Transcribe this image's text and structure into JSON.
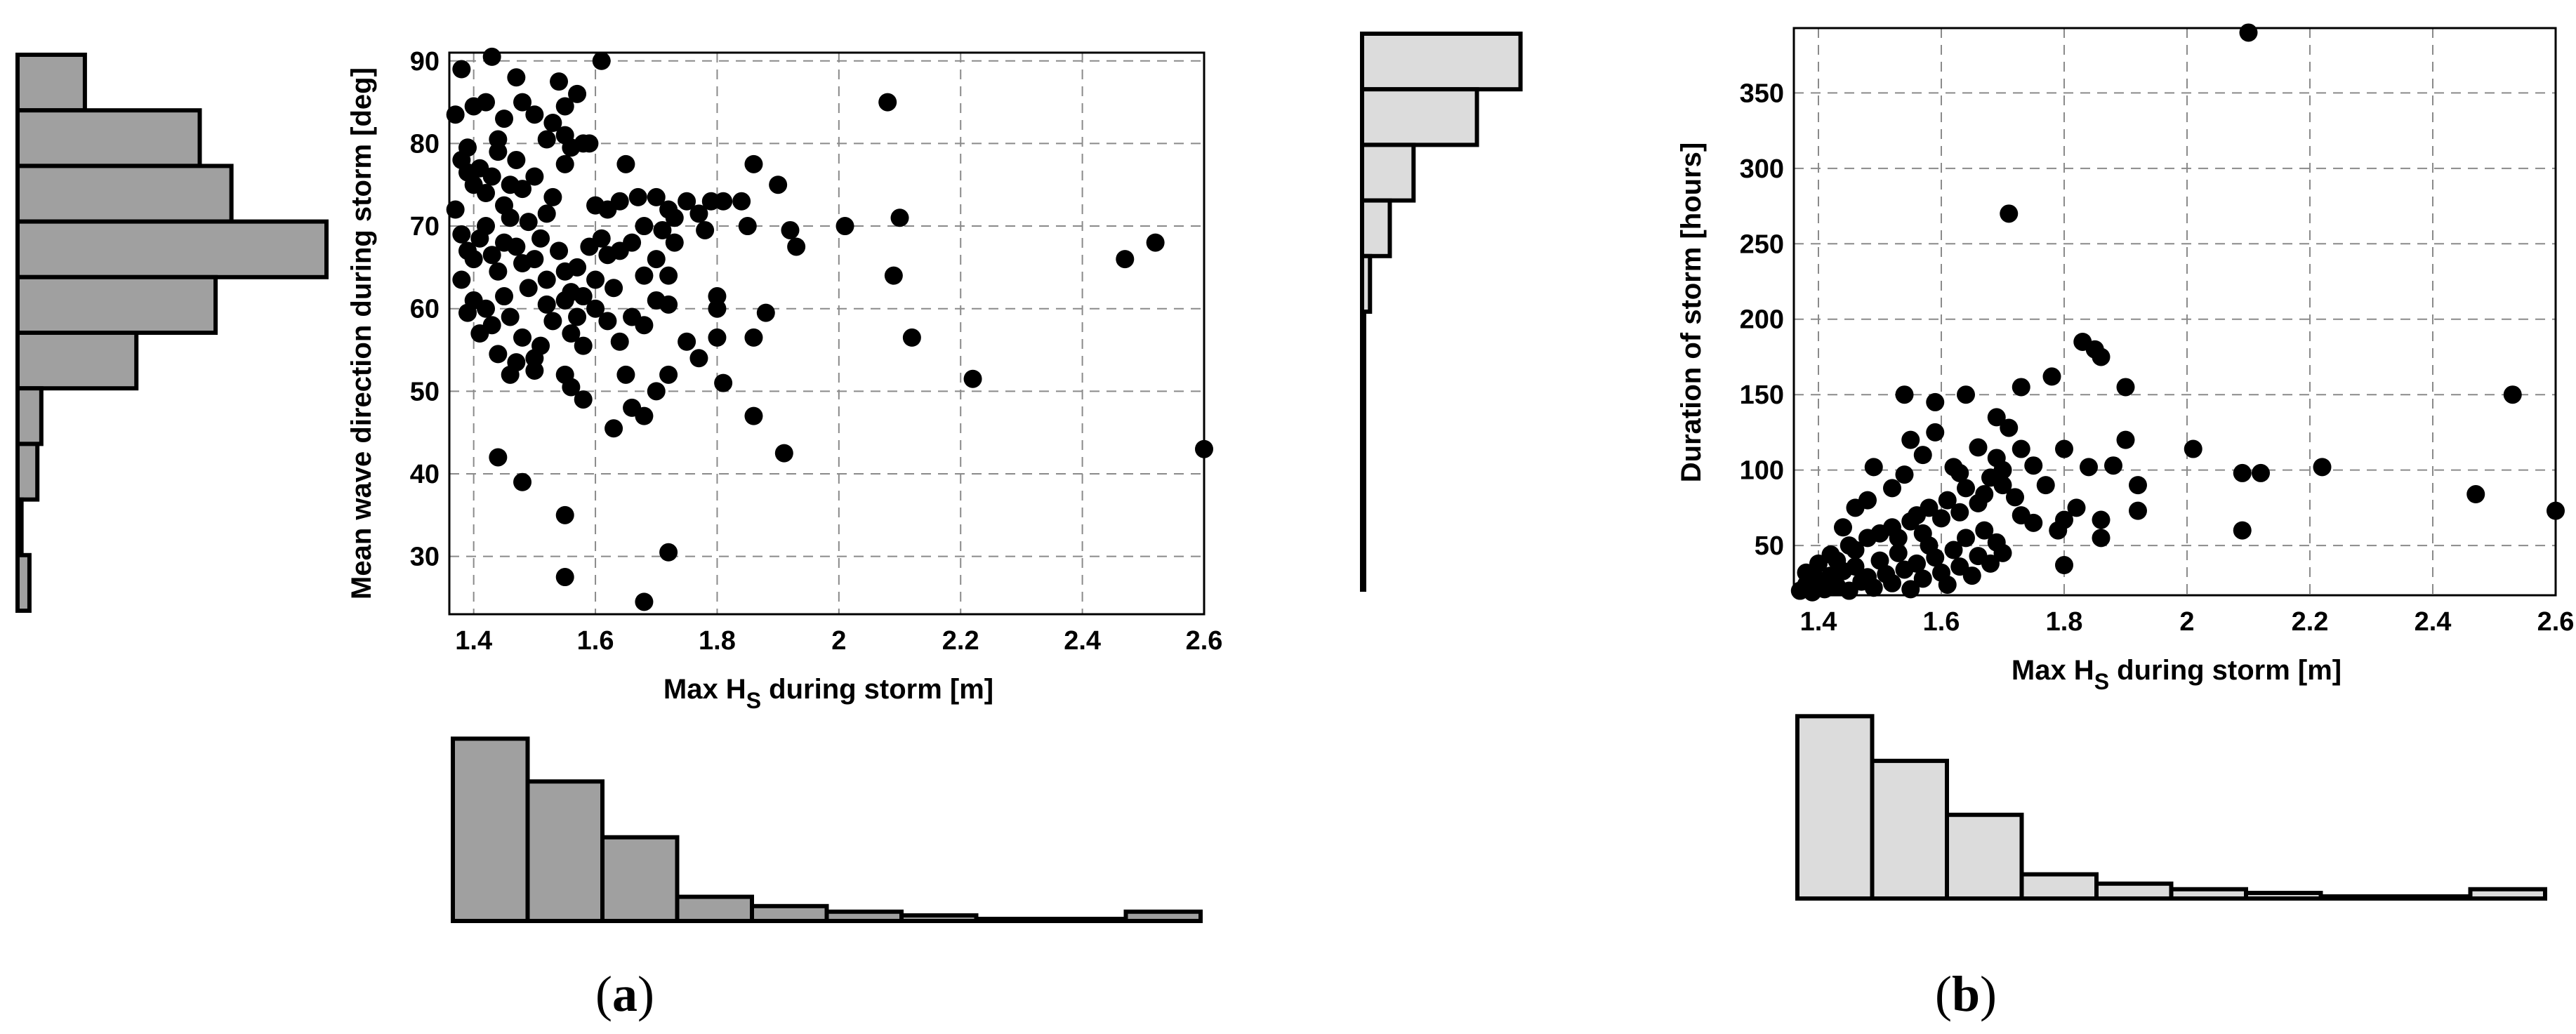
{
  "chart_data": [
    {
      "id": "a",
      "panel_label": "a",
      "type": "scatter",
      "xlabel": "Max H",
      "xlabel_sub": "S",
      "xlabel_suffix": " during storm [m]",
      "ylabel": "Mean wave direction during storm [deg]",
      "xlim": [
        1.36,
        2.6
      ],
      "ylim": [
        23,
        91
      ],
      "xticks": [
        1.4,
        1.6,
        1.8,
        2,
        2.2,
        2.4,
        2.6
      ],
      "yticks": [
        30,
        40,
        50,
        60,
        70,
        80,
        90
      ],
      "grid": true,
      "point_color": "#000000",
      "points": [
        [
          1.37,
          83.5
        ],
        [
          1.38,
          89
        ],
        [
          1.39,
          79.5
        ],
        [
          1.4,
          84.5
        ],
        [
          1.42,
          85
        ],
        [
          1.43,
          90.5
        ],
        [
          1.44,
          80.5
        ],
        [
          1.45,
          83
        ],
        [
          1.47,
          88
        ],
        [
          1.48,
          85
        ],
        [
          1.5,
          83.5
        ],
        [
          1.52,
          80.5
        ],
        [
          1.54,
          87.5
        ],
        [
          1.55,
          84.5
        ],
        [
          1.57,
          86
        ],
        [
          1.59,
          80
        ],
        [
          1.61,
          90
        ],
        [
          1.55,
          81
        ],
        [
          1.53,
          82.5
        ],
        [
          1.38,
          78
        ],
        [
          1.39,
          76.5
        ],
        [
          1.4,
          75
        ],
        [
          1.41,
          77
        ],
        [
          1.42,
          74
        ],
        [
          1.43,
          76
        ],
        [
          1.44,
          79
        ],
        [
          1.45,
          72.5
        ],
        [
          1.46,
          75
        ],
        [
          1.47,
          78
        ],
        [
          1.48,
          74.5
        ],
        [
          1.49,
          70.5
        ],
        [
          1.5,
          76
        ],
        [
          1.52,
          71.5
        ],
        [
          1.53,
          73.5
        ],
        [
          1.55,
          77.5
        ],
        [
          1.56,
          79.5
        ],
        [
          1.58,
          80
        ],
        [
          1.6,
          72.5
        ],
        [
          1.61,
          68.5
        ],
        [
          1.62,
          72
        ],
        [
          1.64,
          73
        ],
        [
          1.65,
          77.5
        ],
        [
          1.67,
          73.5
        ],
        [
          1.68,
          70
        ],
        [
          1.7,
          73.5
        ],
        [
          1.72,
          72
        ],
        [
          1.73,
          71
        ],
        [
          1.75,
          73
        ],
        [
          1.77,
          71.5
        ],
        [
          1.79,
          73
        ],
        [
          1.81,
          73
        ],
        [
          1.84,
          73
        ],
        [
          1.86,
          77.5
        ],
        [
          1.9,
          75
        ],
        [
          1.37,
          72
        ],
        [
          1.38,
          69
        ],
        [
          1.39,
          67
        ],
        [
          1.4,
          66
        ],
        [
          1.41,
          68.5
        ],
        [
          1.42,
          70
        ],
        [
          1.43,
          66.5
        ],
        [
          1.44,
          64.5
        ],
        [
          1.45,
          68
        ],
        [
          1.46,
          71
        ],
        [
          1.47,
          67.5
        ],
        [
          1.48,
          65.5
        ],
        [
          1.49,
          62.5
        ],
        [
          1.5,
          66
        ],
        [
          1.51,
          68.5
        ],
        [
          1.52,
          63.5
        ],
        [
          1.54,
          67
        ],
        [
          1.55,
          64.5
        ],
        [
          1.56,
          62
        ],
        [
          1.57,
          65
        ],
        [
          1.58,
          61.5
        ],
        [
          1.59,
          67.5
        ],
        [
          1.6,
          63.5
        ],
        [
          1.62,
          66.5
        ],
        [
          1.63,
          62.5
        ],
        [
          1.64,
          67
        ],
        [
          1.66,
          68
        ],
        [
          1.68,
          64
        ],
        [
          1.7,
          66
        ],
        [
          1.71,
          69.5
        ],
        [
          1.72,
          64
        ],
        [
          1.73,
          68
        ],
        [
          1.78,
          69.5
        ],
        [
          1.85,
          70
        ],
        [
          1.92,
          69.5
        ],
        [
          1.93,
          67.5
        ],
        [
          2.01,
          70
        ],
        [
          2.09,
          64
        ],
        [
          2.1,
          71
        ],
        [
          2.08,
          85
        ],
        [
          2.47,
          66
        ],
        [
          2.52,
          68
        ],
        [
          1.38,
          63.5
        ],
        [
          1.39,
          59.5
        ],
        [
          1.4,
          61
        ],
        [
          1.41,
          57
        ],
        [
          1.42,
          60
        ],
        [
          1.43,
          58
        ],
        [
          1.44,
          54.5
        ],
        [
          1.45,
          61.5
        ],
        [
          1.46,
          59
        ],
        [
          1.47,
          53.5
        ],
        [
          1.48,
          56.5
        ],
        [
          1.5,
          54
        ],
        [
          1.51,
          55.5
        ],
        [
          1.52,
          60.5
        ],
        [
          1.53,
          58.5
        ],
        [
          1.55,
          61
        ],
        [
          1.56,
          57
        ],
        [
          1.57,
          59
        ],
        [
          1.58,
          55.5
        ],
        [
          1.6,
          60
        ],
        [
          1.62,
          58.5
        ],
        [
          1.64,
          56
        ],
        [
          1.66,
          59
        ],
        [
          1.68,
          58
        ],
        [
          1.7,
          61
        ],
        [
          1.72,
          60.5
        ],
        [
          1.75,
          56
        ],
        [
          1.77,
          54
        ],
        [
          1.8,
          61.5
        ],
        [
          1.8,
          60
        ],
        [
          1.8,
          56.5
        ],
        [
          1.86,
          56.5
        ],
        [
          1.88,
          59.5
        ],
        [
          2.12,
          56.5
        ],
        [
          1.46,
          52
        ],
        [
          1.5,
          52.5
        ],
        [
          1.55,
          52
        ],
        [
          1.56,
          50.5
        ],
        [
          1.58,
          49
        ],
        [
          1.65,
          52
        ],
        [
          1.68,
          47
        ],
        [
          1.7,
          50
        ],
        [
          1.72,
          52
        ],
        [
          1.81,
          51
        ],
        [
          1.86,
          47
        ],
        [
          1.63,
          45.5
        ],
        [
          1.66,
          48
        ],
        [
          2.22,
          51.5
        ],
        [
          1.44,
          42
        ],
        [
          1.48,
          39
        ],
        [
          1.91,
          42.5
        ],
        [
          2.6,
          43
        ],
        [
          1.55,
          35
        ],
        [
          1.55,
          27.5
        ],
        [
          1.68,
          24.5
        ],
        [
          1.72,
          30.5
        ]
      ]
    },
    {
      "id": "b",
      "panel_label": "b",
      "type": "scatter",
      "xlabel": "Max H",
      "xlabel_sub": "S",
      "xlabel_suffix": " during storm [m]",
      "ylabel": "Duration of storm [hours]",
      "xlim": [
        1.36,
        2.6
      ],
      "ylim": [
        17,
        393
      ],
      "xticks": [
        1.4,
        1.6,
        1.8,
        2,
        2.2,
        2.4,
        2.6
      ],
      "yticks": [
        50,
        100,
        150,
        200,
        250,
        300,
        350
      ],
      "grid": true,
      "point_color": "#000000",
      "points": [
        [
          1.37,
          20
        ],
        [
          1.38,
          24
        ],
        [
          1.39,
          19
        ],
        [
          1.4,
          27
        ],
        [
          1.41,
          21
        ],
        [
          1.42,
          30
        ],
        [
          1.43,
          23
        ],
        [
          1.44,
          33
        ],
        [
          1.45,
          20
        ],
        [
          1.46,
          36
        ],
        [
          1.47,
          26
        ],
        [
          1.48,
          29
        ],
        [
          1.49,
          22
        ],
        [
          1.5,
          40
        ],
        [
          1.51,
          31
        ],
        [
          1.52,
          25
        ],
        [
          1.53,
          45
        ],
        [
          1.54,
          34
        ],
        [
          1.55,
          21
        ],
        [
          1.56,
          38
        ],
        [
          1.57,
          28
        ],
        [
          1.58,
          50
        ],
        [
          1.59,
          42
        ],
        [
          1.6,
          32
        ],
        [
          1.61,
          24
        ],
        [
          1.62,
          47
        ],
        [
          1.63,
          36
        ],
        [
          1.64,
          55
        ],
        [
          1.65,
          30
        ],
        [
          1.66,
          43
        ],
        [
          1.67,
          60
        ],
        [
          1.68,
          38
        ],
        [
          1.69,
          52
        ],
        [
          1.7,
          45
        ],
        [
          1.38,
          32
        ],
        [
          1.4,
          38
        ],
        [
          1.42,
          44
        ],
        [
          1.43,
          40
        ],
        [
          1.45,
          50
        ],
        [
          1.46,
          47
        ],
        [
          1.48,
          55
        ],
        [
          1.5,
          58
        ],
        [
          1.52,
          62
        ],
        [
          1.53,
          55
        ],
        [
          1.55,
          66
        ],
        [
          1.56,
          70
        ],
        [
          1.57,
          58
        ],
        [
          1.58,
          75
        ],
        [
          1.6,
          68
        ],
        [
          1.61,
          80
        ],
        [
          1.63,
          72
        ],
        [
          1.64,
          88
        ],
        [
          1.66,
          78
        ],
        [
          1.67,
          84
        ],
        [
          1.68,
          95
        ],
        [
          1.7,
          90
        ],
        [
          1.72,
          82
        ],
        [
          1.73,
          70
        ],
        [
          1.75,
          65
        ],
        [
          1.77,
          90
        ],
        [
          1.79,
          60
        ],
        [
          1.8,
          67
        ],
        [
          1.82,
          75
        ],
        [
          1.44,
          62
        ],
        [
          1.46,
          75
        ],
        [
          1.48,
          80
        ],
        [
          1.49,
          102
        ],
        [
          1.52,
          88
        ],
        [
          1.54,
          97
        ],
        [
          1.55,
          120
        ],
        [
          1.57,
          110
        ],
        [
          1.59,
          125
        ],
        [
          1.62,
          102
        ],
        [
          1.63,
          98
        ],
        [
          1.66,
          115
        ],
        [
          1.69,
          108
        ],
        [
          1.7,
          100
        ],
        [
          1.71,
          128
        ],
        [
          1.73,
          114
        ],
        [
          1.75,
          103
        ],
        [
          1.8,
          114
        ],
        [
          1.84,
          102
        ],
        [
          1.88,
          103
        ],
        [
          1.9,
          120
        ],
        [
          1.92,
          90
        ],
        [
          1.92,
          73
        ],
        [
          1.86,
          55
        ],
        [
          1.86,
          67
        ],
        [
          1.8,
          37
        ],
        [
          1.54,
          150
        ],
        [
          1.59,
          145
        ],
        [
          1.64,
          150
        ],
        [
          1.69,
          135
        ],
        [
          1.73,
          155
        ],
        [
          1.78,
          162
        ],
        [
          1.83,
          185
        ],
        [
          1.85,
          180
        ],
        [
          1.86,
          175
        ],
        [
          1.9,
          155
        ],
        [
          2.01,
          114
        ],
        [
          2.09,
          60
        ],
        [
          2.09,
          98
        ],
        [
          2.12,
          98
        ],
        [
          2.22,
          102
        ],
        [
          2.47,
          84
        ],
        [
          2.53,
          150
        ],
        [
          2.6,
          73
        ],
        [
          1.71,
          270
        ],
        [
          2.1,
          390
        ]
      ]
    }
  ],
  "histograms": [
    {
      "id": "a-left",
      "orientation": "horizontal",
      "fill": "#a0a0a0",
      "values": [
        0.17,
        0.46,
        0.54,
        0.78,
        0.5,
        0.3,
        0.06,
        0.05,
        0.01,
        0.03
      ]
    },
    {
      "id": "a-bottom",
      "orientation": "vertical",
      "fill": "#a0a0a0",
      "values": [
        0.98,
        0.75,
        0.45,
        0.13,
        0.08,
        0.05,
        0.03,
        0.01,
        0.01,
        0.05
      ]
    },
    {
      "id": "b-left",
      "orientation": "horizontal",
      "fill": "#dcdcdc",
      "values": [
        0.4,
        0.29,
        0.13,
        0.07,
        0.02,
        0.005,
        0.002,
        0.005,
        0.002,
        0.002
      ]
    },
    {
      "id": "b-bottom",
      "orientation": "vertical",
      "fill": "#dcdcdc",
      "values": [
        0.98,
        0.74,
        0.45,
        0.13,
        0.08,
        0.05,
        0.03,
        0.01,
        0.01,
        0.05
      ]
    }
  ]
}
